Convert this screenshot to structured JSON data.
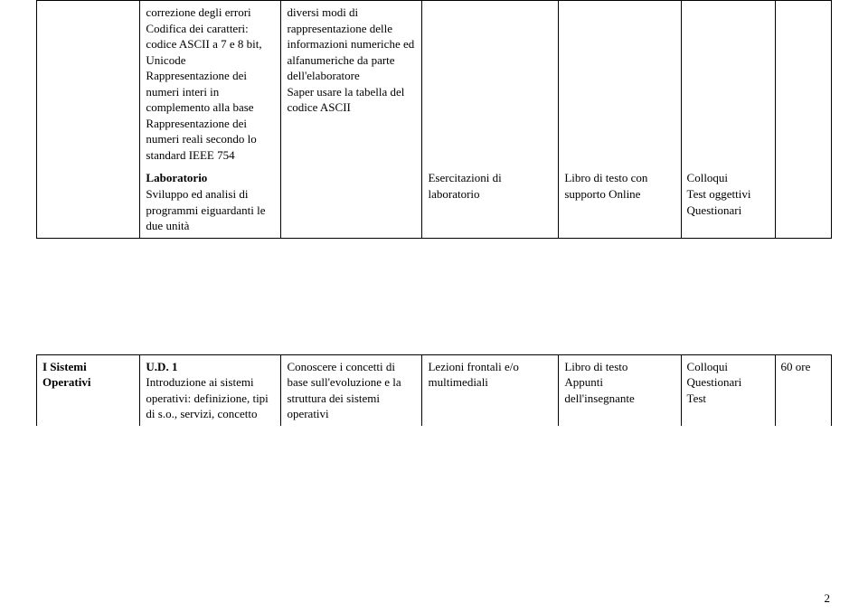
{
  "table": {
    "row1": {
      "c0": "",
      "c1": "correzione degli errori\nCodifica dei caratteri: codice ASCII a 7 e 8 bit, Unicode\nRappresentazione dei numeri interi in complemento alla base\nRappresentazione dei numeri reali secondo lo standard IEEE 754",
      "c2": "diversi modi di rappresentazione delle informazioni numeriche ed alfanumeriche da parte dell'elaboratore\nSaper usare la tabella del codice ASCII",
      "c3": "",
      "c4": "",
      "c5": "",
      "c6": ""
    },
    "row2": {
      "c0": "",
      "c1_bold": "Laboratorio",
      "c1_rest": "Sviluppo ed analisi di programmi eiguardanti le due unità",
      "c2": "",
      "c3": "Esercitazioni di laboratorio",
      "c4": "Libro di testo con supporto Online",
      "c5": "Colloqui\nTest oggettivi\nQuestionari",
      "c6": ""
    },
    "row3": {
      "c0_bold": "I Sistemi Operativi",
      "c1_bold": "U.D. 1",
      "c1_rest": "Introduzione ai sistemi operativi: definizione, tipi di s.o., servizi, concetto",
      "c2": "Conoscere i concetti di base sull'evoluzione e la struttura dei sistemi operativi",
      "c3": "Lezioni frontali e/o multimediali",
      "c4": "Libro di testo\nAppunti dell'insegnante",
      "c5": "Colloqui\nQuestionari\nTest",
      "c6": "60 ore"
    }
  },
  "page_number": "2"
}
